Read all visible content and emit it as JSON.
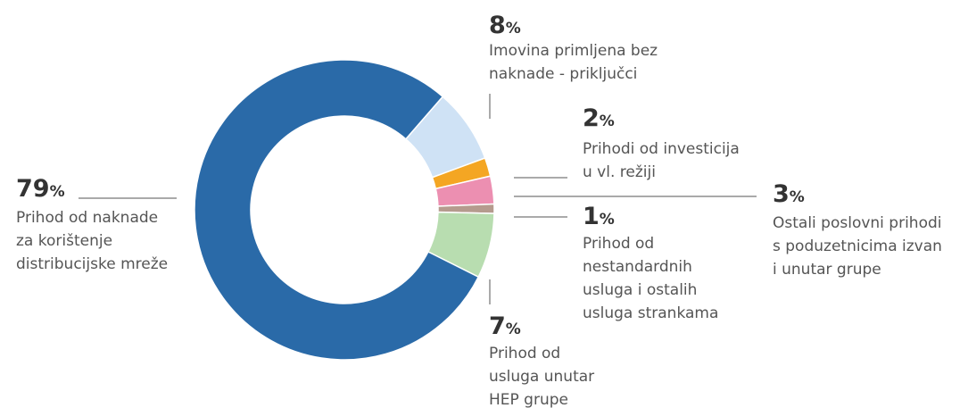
{
  "chart_data": {
    "type": "pie",
    "categories": [
      "Imovina primljena bez\nnaknade - priključci",
      "Prihodi od investicija\nu vl. režiji",
      "Ostali poslovni prihodi\ns poduzetnicima izvan\ni unutar grupe",
      "Prihod od\nnestandardnih\nusluga i ostalih\nusluga strankama",
      "Prihod od\nusluga unutar\nHEP grupe",
      "Prihod od naknade\nza korištenje\ndistribucijske mreže"
    ],
    "values": [
      8,
      2,
      3,
      1,
      7,
      79
    ],
    "value_labels": [
      "8%",
      "2%",
      "3%",
      "1%",
      "7%",
      "79%"
    ],
    "colors": [
      "#cfe2f5",
      "#f4a623",
      "#ec8fb1",
      "#b59b8e",
      "#b8ddb0",
      "#2a6aa8"
    ]
  }
}
